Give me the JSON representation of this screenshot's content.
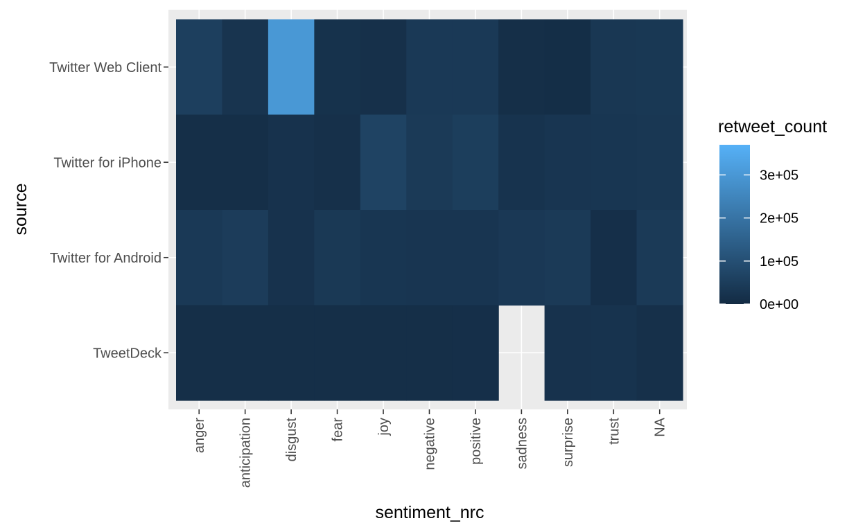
{
  "chart_data": {
    "type": "heatmap",
    "xlabel": "sentiment_nrc",
    "ylabel": "source",
    "x_categories": [
      "anger",
      "anticipation",
      "disgust",
      "fear",
      "joy",
      "negative",
      "positive",
      "sadness",
      "surprise",
      "trust",
      "NA"
    ],
    "y_categories": [
      "Twitter Web Client",
      "Twitter for iPhone",
      "Twitter for Android",
      "TweetDeck"
    ],
    "values": [
      [
        55000,
        25000,
        300000,
        18000,
        15000,
        40000,
        40000,
        10000,
        8000,
        32000,
        35000
      ],
      [
        10000,
        10000,
        20000,
        15000,
        65000,
        42000,
        52000,
        22000,
        28000,
        30000,
        33000
      ],
      [
        40000,
        48000,
        20000,
        38000,
        30000,
        28000,
        28000,
        36000,
        42000,
        12000,
        42000
      ],
      [
        10000,
        10000,
        10000,
        10000,
        10000,
        10000,
        12000,
        null,
        20000,
        22000,
        15000
      ]
    ],
    "legend": {
      "title": "retweet_count",
      "breaks": [
        "0e+00",
        "1e+05",
        "2e+05",
        "3e+05"
      ],
      "break_values": [
        0,
        100000,
        200000,
        300000
      ],
      "range": [
        0,
        370000
      ],
      "low_color": "#132B43",
      "high_color": "#56B1F7",
      "placement": "right"
    },
    "grid": true,
    "panel_background": "#EBEBEB"
  }
}
